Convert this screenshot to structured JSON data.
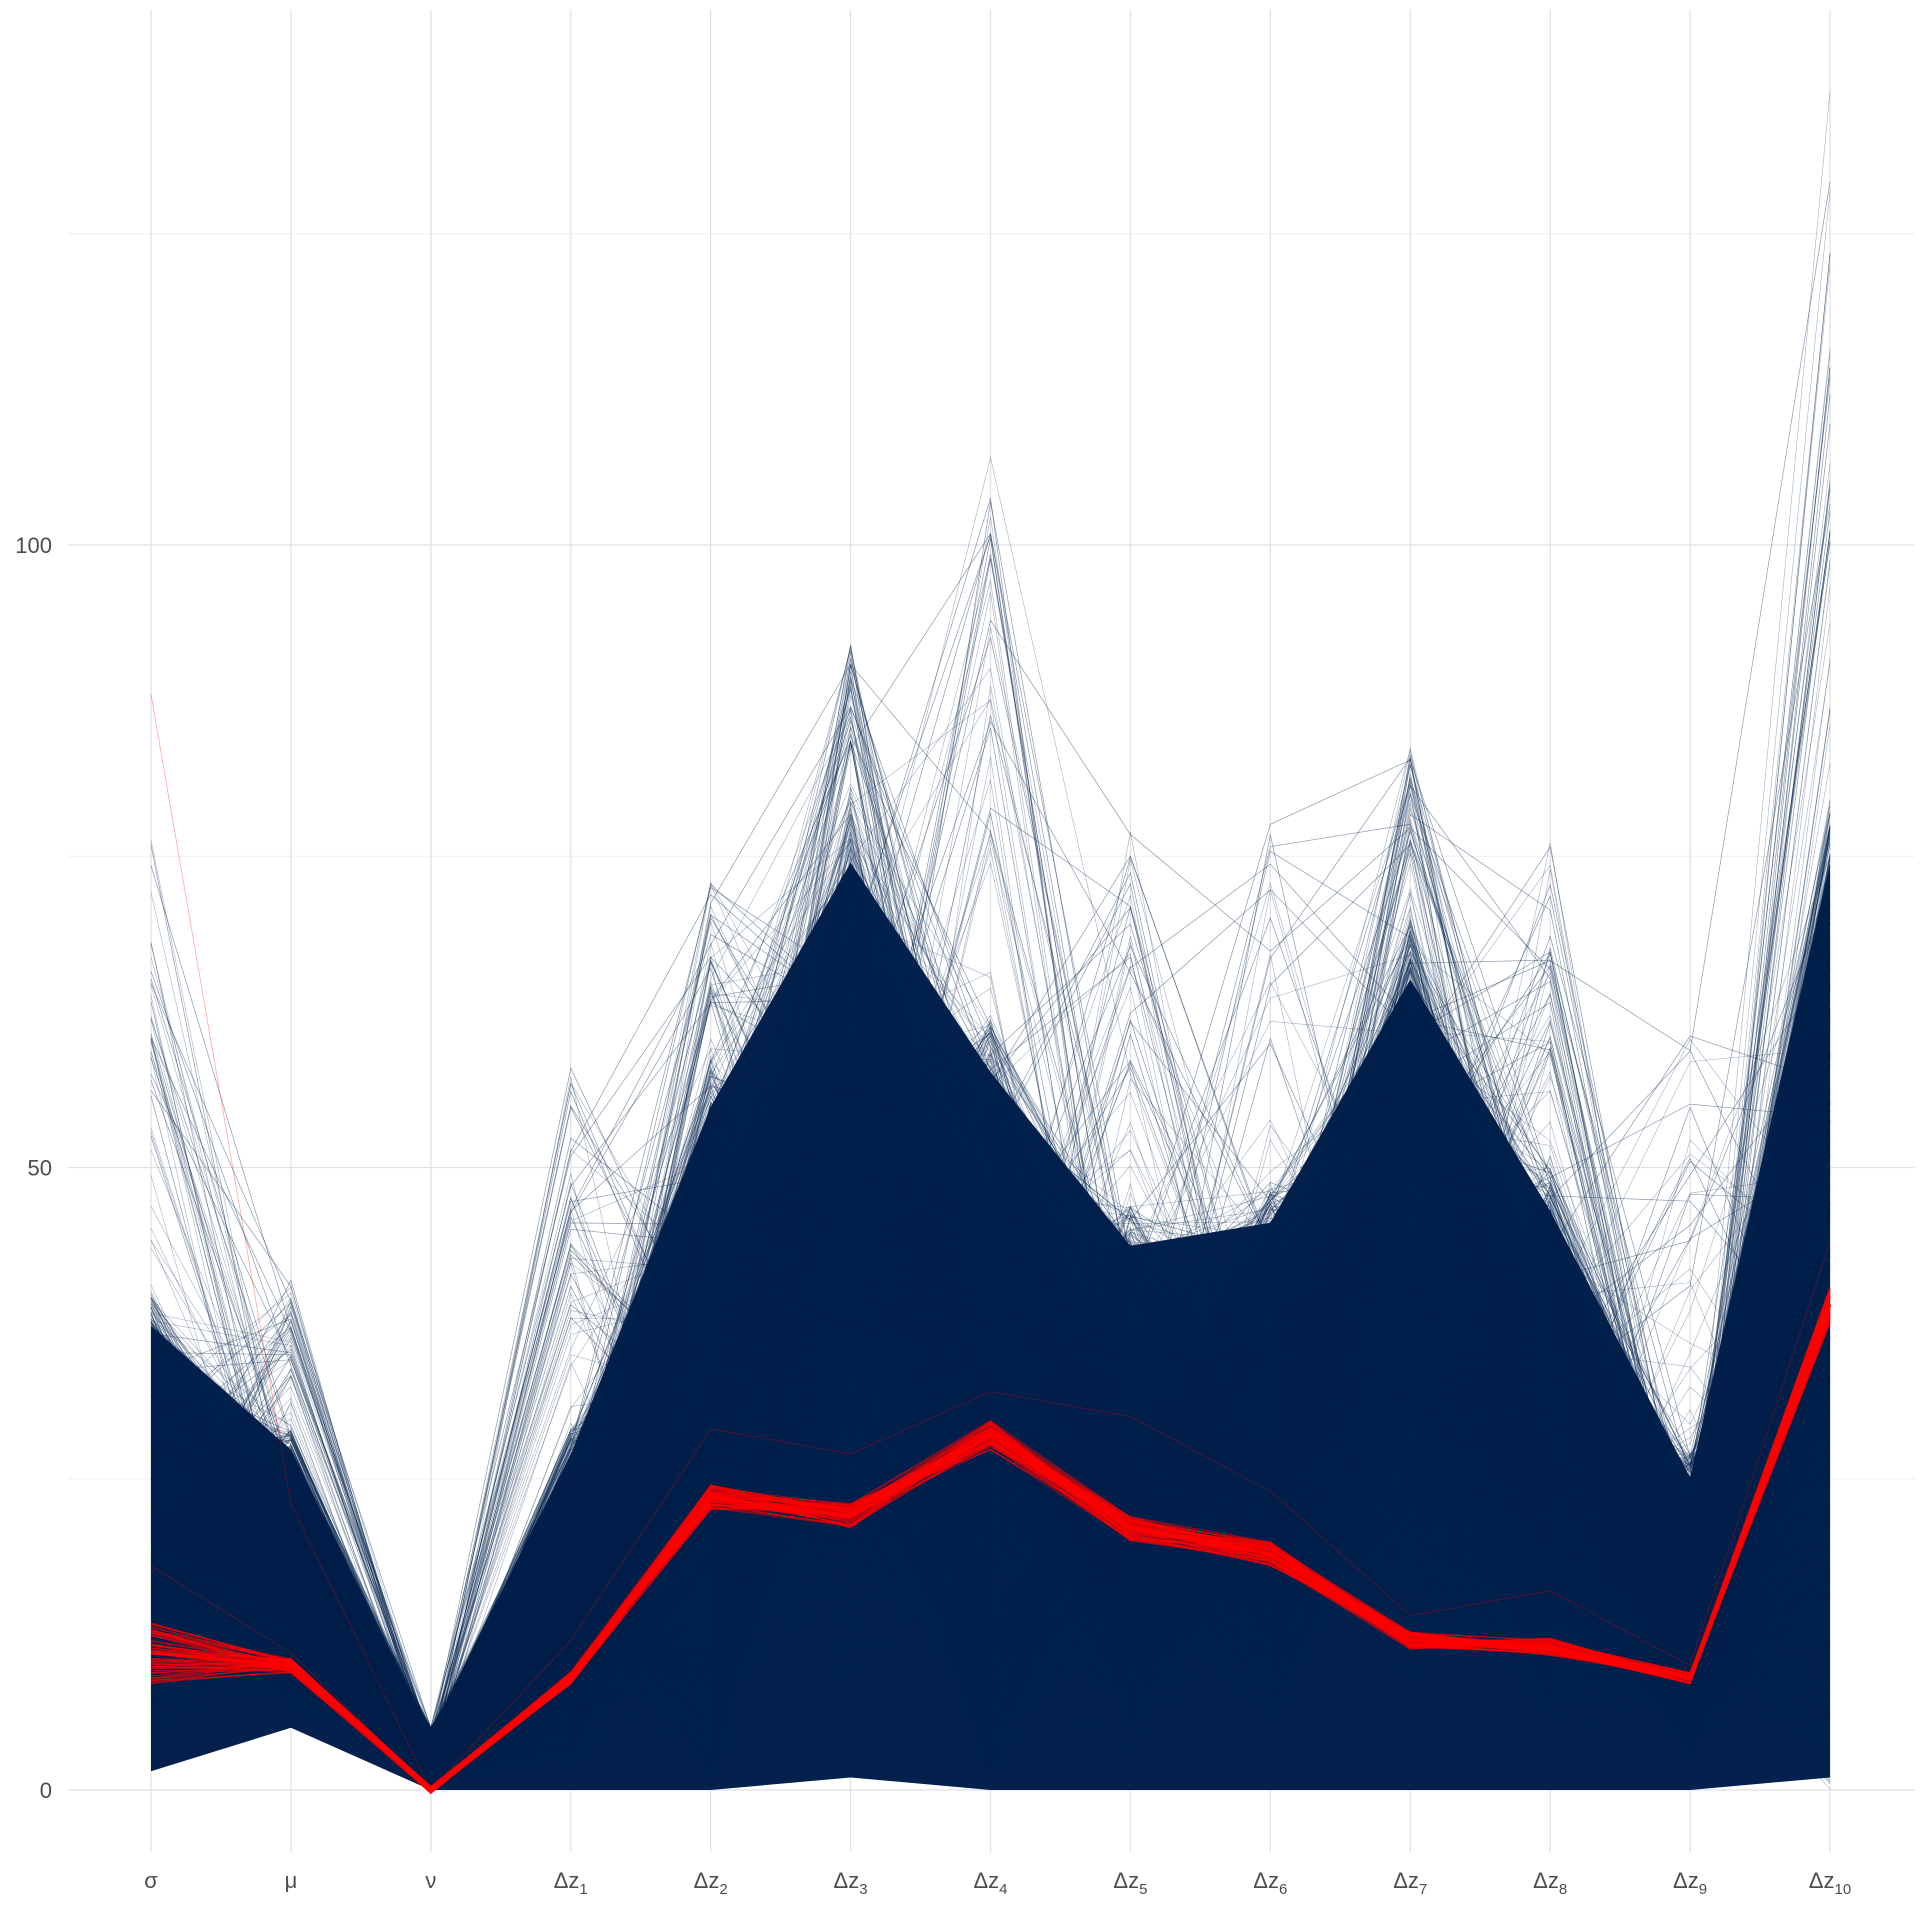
{
  "chart_data": {
    "type": "line",
    "subtype": "parallel-coordinates",
    "title": "",
    "xlabel": "",
    "ylabel": "",
    "categories": [
      "σ",
      "μ",
      "ν",
      "Δz1",
      "Δz2",
      "Δz3",
      "Δz4",
      "Δz5",
      "Δz6",
      "Δz7",
      "Δz8",
      "Δz9",
      "Δz10"
    ],
    "category_labels": [
      {
        "main": "σ",
        "sub": ""
      },
      {
        "main": "μ",
        "sub": ""
      },
      {
        "main": "ν",
        "sub": ""
      },
      {
        "main": "Δz",
        "sub": "1"
      },
      {
        "main": "Δz",
        "sub": "2"
      },
      {
        "main": "Δz",
        "sub": "3"
      },
      {
        "main": "Δz",
        "sub": "4"
      },
      {
        "main": "Δz",
        "sub": "5"
      },
      {
        "main": "Δz",
        "sub": "6"
      },
      {
        "main": "Δz",
        "sub": "7"
      },
      {
        "main": "Δz",
        "sub": "8"
      },
      {
        "main": "Δz",
        "sub": "9"
      },
      {
        "main": "Δz",
        "sub": "10"
      }
    ],
    "ylim": [
      -5,
      143
    ],
    "yticks": [
      0,
      50,
      100
    ],
    "ytick_labels": [
      "0",
      "50",
      "100"
    ],
    "grid": true,
    "legend": "none",
    "series": [
      {
        "color": "#03214c",
        "dense_band": {
          "lower": [
            1.5,
            5,
            0,
            0,
            0,
            1,
            0,
            0,
            0,
            0,
            0,
            0,
            1
          ],
          "upper": [
            40,
            29,
            5,
            29,
            59,
            80,
            62,
            47,
            49,
            70,
            50,
            27,
            80
          ]
        },
        "outer_envelope": {
          "lower": [
            1.5,
            5,
            0,
            0,
            0,
            0,
            0,
            0,
            0,
            0,
            0,
            0,
            0
          ],
          "upper": [
            77,
            41,
            5,
            58,
            73,
            92,
            108,
            77,
            78,
            84,
            78,
            62,
            137
          ]
        },
        "lower_dips_top": [
          null,
          null,
          null,
          null,
          12,
          null,
          13,
          null,
          null,
          null,
          null,
          null,
          18
        ]
      },
      {
        "color": "#ff0000",
        "values": [
          11,
          10,
          0,
          9,
          23.5,
          22,
          28.5,
          21,
          19,
          12,
          11.5,
          9,
          39
        ],
        "band_halfwidth": [
          2.5,
          0.6,
          0.3,
          0.5,
          1,
          1,
          1.2,
          1,
          1,
          0.7,
          0.7,
          0.5,
          1.5
        ],
        "outliers": [
          [
            88,
            23,
            0,
            9,
            23,
            22,
            28,
            21,
            19,
            12,
            11,
            9,
            38
          ],
          [
            18,
            11,
            0,
            12,
            29,
            27,
            32,
            30,
            24,
            14,
            16,
            10,
            44
          ]
        ]
      }
    ]
  },
  "colors": {
    "navy": "#03214c",
    "red": "#ff0000",
    "grid_major": "#e1e1e6",
    "grid_minor": "#efeff3",
    "tick_text": "#4d4d4d"
  }
}
